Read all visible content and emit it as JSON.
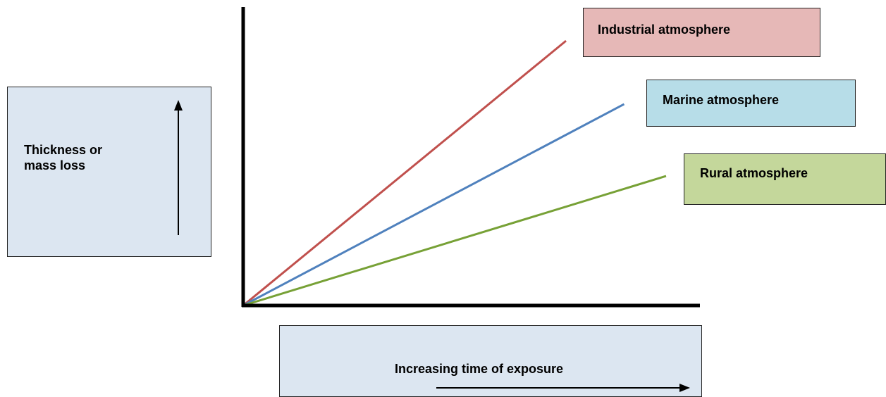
{
  "chart_data": {
    "type": "line",
    "title": "",
    "ylabel": "Thickness or mass loss",
    "xlabel": "Increasing time of exposure",
    "grid": false,
    "x": [
      0,
      1
    ],
    "xlim": [
      0,
      1.35
    ],
    "ylim": [
      0,
      1.05
    ],
    "series": [
      {
        "name": "Industrial atmosphere",
        "color": "#c0504d",
        "values": [
          0,
          0.92
        ]
      },
      {
        "name": "Marine atmosphere",
        "color": "#4f81bd",
        "values": [
          0,
          0.7
        ]
      },
      {
        "name": "Rural atmosphere",
        "color": "#77a136",
        "values": [
          0,
          0.45
        ]
      }
    ],
    "x_end": [
      1.0,
      1.18,
      1.31
    ],
    "legend_colors": [
      "#e6b8b7",
      "#b7dde8",
      "#c4d79b"
    ]
  },
  "labels": {
    "ylabel_line1": "Thickness or",
    "ylabel_line2": "mass loss",
    "xlabel": "Increasing time of exposure",
    "industrial": "Industrial atmosphere",
    "marine": "Marine atmosphere",
    "rural": "Rural atmosphere"
  },
  "colors": {
    "label_box_bg": "#dce6f1",
    "axis": "#000000"
  }
}
